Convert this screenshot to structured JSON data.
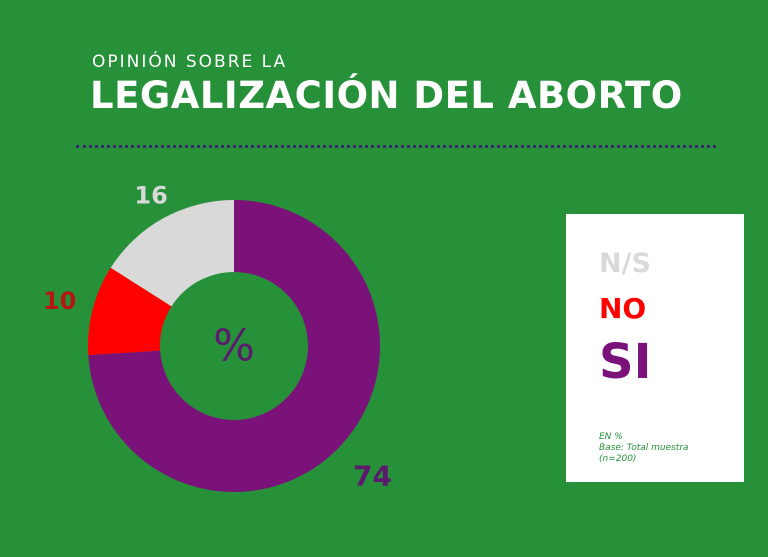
{
  "header": {
    "subtitle": "OPINIÓN SOBRE LA",
    "title": "LEGALIZACIÓN DEL ABORTO"
  },
  "colors": {
    "background": "#27913a",
    "si": "#7a1279",
    "no": "#ff0000",
    "ns": "#d9d9d9",
    "divider": "#3b2670"
  },
  "chart_data": {
    "type": "pie",
    "variant": "donut",
    "center_label": "%",
    "slices": [
      {
        "label": "SI",
        "value": 74,
        "value_label": "74",
        "color": "#7a1279",
        "label_color": "#5c1a6e"
      },
      {
        "label": "NO",
        "value": 10,
        "value_label": "10",
        "color": "#ff0000",
        "label_color": "#b3170f"
      },
      {
        "label": "N/S",
        "value": 16,
        "value_label": "16",
        "color": "#d9d9d9",
        "label_color": "#d9d9d9"
      }
    ],
    "legend": {
      "position": "right",
      "items": [
        {
          "label": "N/S",
          "color": "#d9d9d9"
        },
        {
          "label": "NO",
          "color": "#ff0000"
        },
        {
          "label": "SI",
          "color": "#7a1279"
        }
      ]
    }
  },
  "notes": {
    "line1": "EN %",
    "line2": "Base: Total muestra",
    "line3": "(n=200)"
  }
}
